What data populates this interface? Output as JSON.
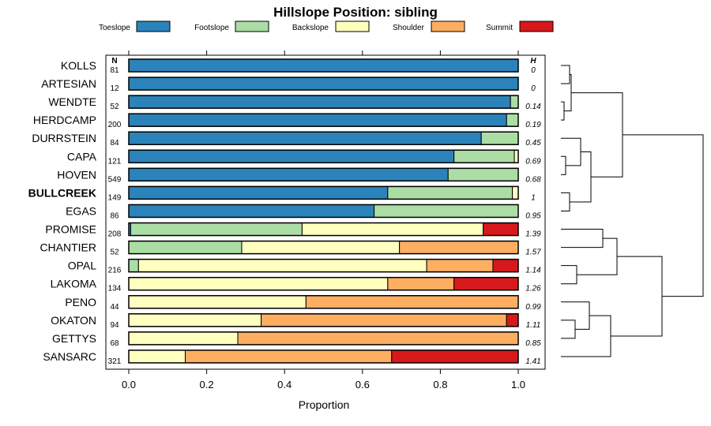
{
  "chart_data": {
    "type": "bar",
    "orientation": "horizontal",
    "stacked": true,
    "title": "Hillslope Position: sibling",
    "xlabel": "Proportion",
    "xlim": [
      0,
      1
    ],
    "x_ticks": [
      "0.0",
      "0.2",
      "0.4",
      "0.6",
      "0.8",
      "1.0"
    ],
    "n_header": "N",
    "h_header": "H",
    "highlight": "BULLCREEK",
    "legend_position": "top",
    "dendrogram": "right",
    "series": [
      {
        "name": "Toeslope",
        "color": "#2b83ba"
      },
      {
        "name": "Footslope",
        "color": "#abdda4"
      },
      {
        "name": "Backslope",
        "color": "#ffffbf"
      },
      {
        "name": "Shoulder",
        "color": "#fdae61"
      },
      {
        "name": "Summit",
        "color": "#d7191c"
      }
    ],
    "rows": [
      {
        "label": "KOLLS",
        "n": "81",
        "h": "0",
        "values": [
          1.0,
          0,
          0,
          0,
          0
        ]
      },
      {
        "label": "ARTESIAN",
        "n": "12",
        "h": "0",
        "values": [
          1.0,
          0,
          0,
          0,
          0
        ]
      },
      {
        "label": "WENDTE",
        "n": "52",
        "h": "0.14",
        "values": [
          0.98,
          0.02,
          0,
          0,
          0
        ]
      },
      {
        "label": "HERDCAMP",
        "n": "200",
        "h": "0.19",
        "values": [
          0.97,
          0.03,
          0,
          0,
          0
        ]
      },
      {
        "label": "DURRSTEIN",
        "n": "84",
        "h": "0.45",
        "values": [
          0.905,
          0.095,
          0,
          0,
          0
        ]
      },
      {
        "label": "CAPA",
        "n": "121",
        "h": "0.69",
        "values": [
          0.835,
          0.155,
          0.01,
          0,
          0
        ]
      },
      {
        "label": "HOVEN",
        "n": "549",
        "h": "0.68",
        "values": [
          0.82,
          0.18,
          0,
          0,
          0
        ]
      },
      {
        "label": "BULLCREEK",
        "n": "149",
        "h": "1",
        "values": [
          0.665,
          0.32,
          0.015,
          0,
          0
        ]
      },
      {
        "label": "EGAS",
        "n": "86",
        "h": "0.95",
        "values": [
          0.63,
          0.37,
          0,
          0,
          0
        ]
      },
      {
        "label": "PROMISE",
        "n": "208",
        "h": "1.39",
        "values": [
          0.005,
          0.44,
          0.465,
          0,
          0.09
        ]
      },
      {
        "label": "CHANTIER",
        "n": "52",
        "h": "1.57",
        "values": [
          0,
          0.29,
          0.405,
          0.305,
          0
        ]
      },
      {
        "label": "OPAL",
        "n": "216",
        "h": "1.14",
        "values": [
          0,
          0.025,
          0.74,
          0.17,
          0.065
        ]
      },
      {
        "label": "LAKOMA",
        "n": "134",
        "h": "1.26",
        "values": [
          0,
          0,
          0.665,
          0.17,
          0.165
        ]
      },
      {
        "label": "PENO",
        "n": "44",
        "h": "0.99",
        "values": [
          0,
          0,
          0.455,
          0.545,
          0
        ]
      },
      {
        "label": "OKATON",
        "n": "94",
        "h": "1.11",
        "values": [
          0,
          0,
          0.34,
          0.63,
          0.03
        ]
      },
      {
        "label": "GETTYS",
        "n": "68",
        "h": "0.85",
        "values": [
          0,
          0,
          0.28,
          0.72,
          0
        ]
      },
      {
        "label": "SANSARC",
        "n": "321",
        "h": "1.41",
        "values": [
          0,
          0,
          0.145,
          0.53,
          0.325
        ]
      }
    ]
  }
}
